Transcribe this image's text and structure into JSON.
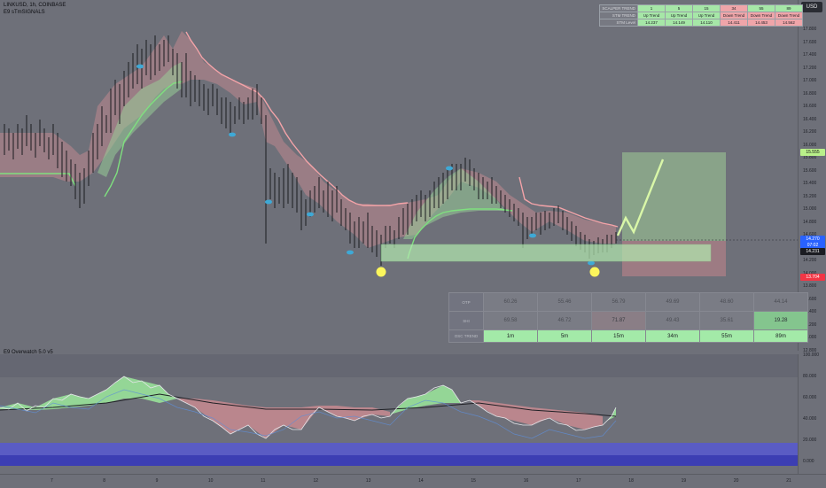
{
  "header": {
    "symbol": "LINKUSD, 1h, COINBASE",
    "indicator": "E9 sTmSIGNALS",
    "osc_indicator": "E9 Overwatch 5.0 v5",
    "currency_button": "USD"
  },
  "trend_table": {
    "timeframes": [
      "1",
      "5",
      "15",
      "34",
      "55",
      "89"
    ],
    "rows": [
      {
        "label": "SCALPER TREND",
        "cells": [
          "1",
          "5",
          "15",
          "34",
          "55",
          "89"
        ],
        "states": [
          "up",
          "up",
          "up",
          "down",
          "up",
          "up"
        ]
      },
      {
        "label": "STM TREND",
        "cells": [
          "Up Trend",
          "Up Trend",
          "Up Trend",
          "Down Trend",
          "Down Trend",
          "Down Trend"
        ],
        "states": [
          "up",
          "up",
          "up",
          "down",
          "down",
          "down"
        ]
      },
      {
        "label": "STM Level",
        "cells": [
          "14.237",
          "14.149",
          "14.110",
          "14.411",
          "14.453",
          "14.562"
        ],
        "states": [
          "up",
          "up",
          "up",
          "down",
          "down",
          "down"
        ]
      }
    ]
  },
  "osc_table": {
    "rows": [
      {
        "label": "OTP",
        "cells": [
          "60.26",
          "55.46",
          "56.79",
          "49.69",
          "48.60",
          "44.14"
        ],
        "styles": [
          "",
          "",
          "",
          "",
          "",
          ""
        ]
      },
      {
        "label": "SHI",
        "cells": [
          "69.58",
          "46.72",
          "71.87",
          "49.43",
          "35.61",
          "19.28"
        ],
        "styles": [
          "",
          "",
          "pk",
          "",
          "",
          "hl"
        ]
      },
      {
        "label": "OSC TREND",
        "cells": [
          "1m",
          "5m",
          "15m",
          "34m",
          "55m",
          "89m"
        ],
        "styles": [
          "tf",
          "tf",
          "tf",
          "tf",
          "tf",
          "tf"
        ]
      }
    ]
  },
  "price_axis": {
    "ticks": [
      "17.800",
      "17.600",
      "17.400",
      "17.200",
      "17.000",
      "16.800",
      "16.600",
      "16.400",
      "16.200",
      "16.000",
      "15.800",
      "15.600",
      "15.400",
      "15.200",
      "15.000",
      "14.800",
      "14.600",
      "14.400",
      "14.200",
      "14.000",
      "13.800",
      "13.600",
      "13.400",
      "13.200",
      "13.000",
      "12.800"
    ],
    "labels": {
      "target": "15.555",
      "current": "14.270",
      "countdown": "07:02",
      "level": "14.231",
      "stop": "13.704"
    },
    "colors": {
      "target": "#b9f08a",
      "current": "#2962ff",
      "level": "#1b1c22",
      "stop": "#f23645"
    }
  },
  "osc_axis": {
    "ticks": [
      "100.000",
      "80.000",
      "60.000",
      "40.000",
      "20.000",
      "0.000"
    ]
  },
  "time_axis": {
    "ticks": [
      "7",
      "8",
      "9",
      "10",
      "11",
      "12",
      "13",
      "14",
      "15",
      "16",
      "17",
      "18",
      "19",
      "20",
      "21"
    ]
  },
  "colors": {
    "bull": "#9be89b",
    "bear": "#e9a0a4",
    "support": "#7fe07f",
    "resistance": "#f4a3a8",
    "signal": "#fcf65c",
    "oscillator_band": "#4446b8"
  }
}
